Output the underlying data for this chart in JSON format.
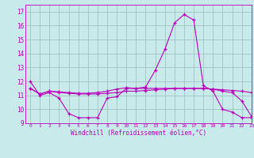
{
  "xlabel": "Windchill (Refroidissement éolien,°C)",
  "xlim": [
    -0.5,
    23
  ],
  "ylim": [
    9,
    17.5
  ],
  "yticks": [
    9,
    10,
    11,
    12,
    13,
    14,
    15,
    16,
    17
  ],
  "xticks": [
    0,
    1,
    2,
    3,
    4,
    5,
    6,
    7,
    8,
    9,
    10,
    11,
    12,
    13,
    14,
    15,
    16,
    17,
    18,
    19,
    20,
    21,
    22,
    23
  ],
  "bg_color": "#c8eaea",
  "line_color": "#bb00bb",
  "grid_color": "#99bbbb",
  "line1": [
    12.0,
    11.0,
    11.2,
    10.8,
    9.7,
    9.4,
    9.4,
    9.4,
    10.8,
    10.9,
    11.5,
    11.5,
    11.6,
    12.8,
    14.3,
    16.2,
    16.8,
    16.4,
    11.7,
    11.3,
    10.0,
    9.8,
    9.4,
    9.4
  ],
  "line2": [
    11.5,
    11.1,
    11.3,
    11.2,
    11.15,
    11.1,
    11.1,
    11.1,
    11.15,
    11.2,
    11.3,
    11.3,
    11.35,
    11.4,
    11.45,
    11.5,
    11.5,
    11.5,
    11.5,
    11.45,
    11.4,
    11.35,
    11.3,
    11.2
  ],
  "line3": [
    11.5,
    11.1,
    11.3,
    11.25,
    11.2,
    11.15,
    11.15,
    11.2,
    11.3,
    11.45,
    11.55,
    11.5,
    11.5,
    11.5,
    11.5,
    11.5,
    11.5,
    11.5,
    11.5,
    11.45,
    11.3,
    11.2,
    10.6,
    9.5
  ]
}
